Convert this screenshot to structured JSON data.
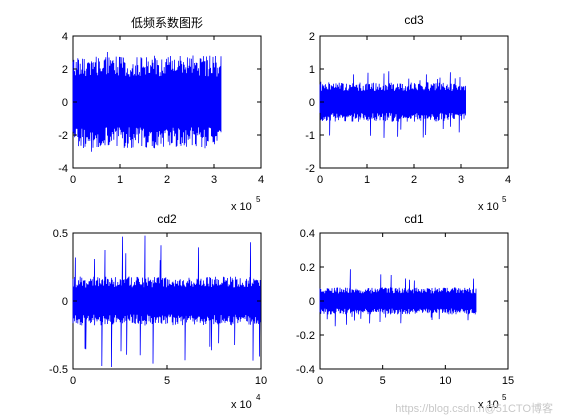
{
  "chart_data": [
    {
      "type": "line",
      "title": "低频系数图形",
      "xlim": [
        0,
        4
      ],
      "ylim": [
        -4,
        4
      ],
      "xticks": [
        "0",
        "1",
        "2",
        "3",
        "4"
      ],
      "yticks": [
        "4",
        "2",
        "0",
        "-2",
        "-4"
      ],
      "x_exponent": {
        "base": "x 10",
        "power": "5"
      },
      "series": [
        {
          "color": "#0000ff",
          "x_extent": [
            0,
            3.15
          ],
          "envelope": [
            -2.8,
            2.8
          ],
          "spikes": [
            -3.3,
            3.1
          ]
        }
      ]
    },
    {
      "type": "line",
      "title": "cd3",
      "xlim": [
        0,
        4
      ],
      "ylim": [
        -2,
        2
      ],
      "xticks": [
        "0",
        "1",
        "2",
        "3",
        "4"
      ],
      "yticks": [
        "2",
        "1",
        "0",
        "-1",
        "-2"
      ],
      "x_exponent": {
        "base": "x 10",
        "power": "5"
      },
      "series": [
        {
          "color": "#0000ff",
          "x_extent": [
            0,
            3.1
          ],
          "envelope": [
            -0.6,
            0.6
          ],
          "spikes": [
            -1.1,
            1.0
          ]
        }
      ]
    },
    {
      "type": "line",
      "title": "cd2",
      "xlim": [
        0,
        10
      ],
      "ylim": [
        -0.5,
        0.5
      ],
      "xticks": [
        "0",
        "5",
        "10"
      ],
      "yticks": [
        "0.5",
        "0",
        "-0.5"
      ],
      "x_exponent": {
        "base": "x 10",
        "power": "4"
      },
      "series": [
        {
          "color": "#0000ff",
          "x_extent": [
            0,
            10
          ],
          "envelope": [
            -0.18,
            0.18
          ],
          "spikes": [
            -0.5,
            0.5
          ]
        }
      ]
    },
    {
      "type": "line",
      "title": "cd1",
      "xlim": [
        0,
        15
      ],
      "ylim": [
        -0.4,
        0.4
      ],
      "xticks": [
        "0",
        "5",
        "10",
        "15"
      ],
      "yticks": [
        "0.4",
        "0.2",
        "0",
        "-0.2",
        "-0.4"
      ],
      "x_exponent": {
        "base": "x 10",
        "power": "5"
      },
      "series": [
        {
          "color": "#0000ff",
          "x_extent": [
            0,
            12.5
          ],
          "envelope": [
            -0.08,
            0.08
          ],
          "spikes": [
            -0.15,
            0.2
          ]
        }
      ]
    }
  ],
  "watermark": "https://blog.csdn.n@51CTO博客"
}
